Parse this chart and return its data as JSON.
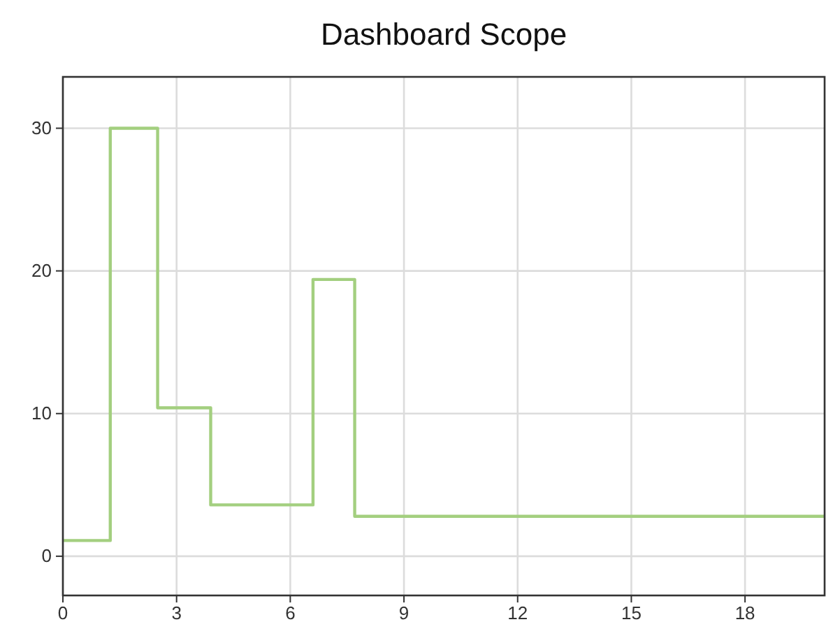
{
  "chart_data": {
    "type": "step",
    "title": "Dashboard Scope",
    "x": [
      0,
      1.25,
      2.5,
      3.9,
      6.6,
      7.7,
      20.1
    ],
    "series": [
      {
        "color": "#a3cf7f",
        "values": [
          1.1,
          30,
          10.4,
          3.6,
          19.4,
          2.8,
          2.8
        ]
      }
    ],
    "xlim": [
      0,
      20.1
    ],
    "xticks": [
      0,
      3,
      6,
      9,
      12,
      15,
      18
    ],
    "ylim": [
      -2.75,
      33.6
    ],
    "yticks": [
      0,
      10,
      20,
      30
    ],
    "grid": true,
    "marker": "none",
    "line_style": "solid"
  }
}
